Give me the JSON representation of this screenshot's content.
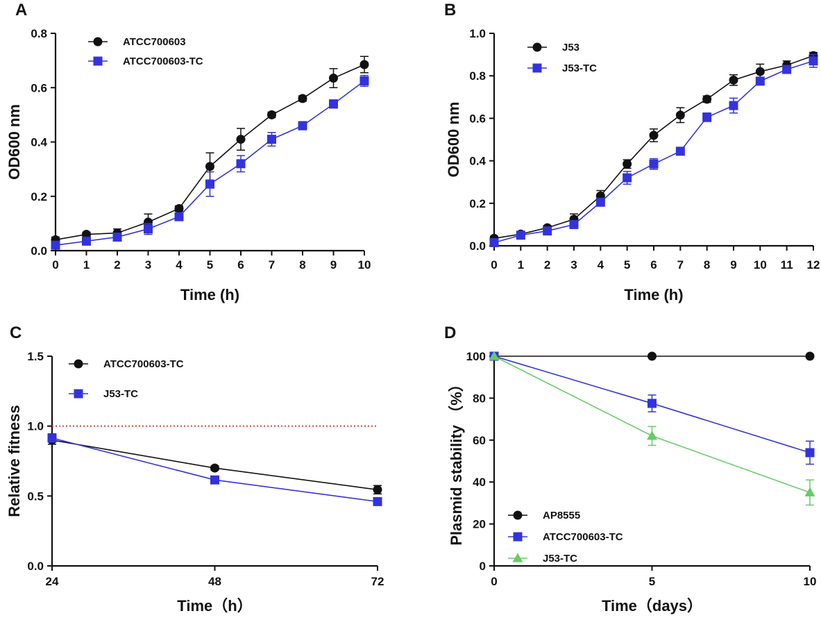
{
  "chart_data": [
    {
      "panel": "A",
      "type": "line",
      "xlabel": "Time (h)",
      "ylabel": "OD600 nm",
      "xlim": [
        0,
        10
      ],
      "ylim": [
        0,
        0.8
      ],
      "xticks": [
        "0",
        "1",
        "2",
        "3",
        "4",
        "5",
        "6",
        "7",
        "8",
        "9",
        "10"
      ],
      "yticks": [
        "0.0",
        "0.2",
        "0.4",
        "0.6",
        "0.8"
      ],
      "legend_position": "top-left",
      "series": [
        {
          "name": "ATCC700603",
          "color": "#111111",
          "marker": "circle",
          "x": [
            0,
            1,
            2,
            3,
            4,
            5,
            6,
            7,
            8,
            9,
            10
          ],
          "values": [
            0.04,
            0.06,
            0.065,
            0.105,
            0.155,
            0.31,
            0.41,
            0.5,
            0.56,
            0.635,
            0.685
          ],
          "errors": [
            0.01,
            0.008,
            0.015,
            0.03,
            0.01,
            0.05,
            0.04,
            0.01,
            0.01,
            0.035,
            0.03
          ]
        },
        {
          "name": "ATCC700603-TC",
          "color": "#3333dd",
          "marker": "square",
          "x": [
            0,
            1,
            2,
            3,
            4,
            5,
            6,
            7,
            8,
            9,
            10
          ],
          "values": [
            0.02,
            0.035,
            0.05,
            0.08,
            0.125,
            0.245,
            0.32,
            0.41,
            0.46,
            0.54,
            0.625
          ],
          "errors": [
            0.005,
            0.005,
            0.01,
            0.02,
            0.01,
            0.045,
            0.03,
            0.025,
            0.015,
            0.015,
            0.02
          ]
        }
      ]
    },
    {
      "panel": "B",
      "type": "line",
      "xlabel": "Time (h)",
      "ylabel": "OD600 nm",
      "xlim": [
        0,
        12
      ],
      "ylim": [
        0,
        1.0
      ],
      "xticks": [
        "0",
        "1",
        "2",
        "3",
        "4",
        "5",
        "6",
        "7",
        "8",
        "9",
        "10",
        "11",
        "12"
      ],
      "yticks": [
        "0.0",
        "0.2",
        "0.4",
        "0.6",
        "0.8",
        "1.0"
      ],
      "legend_position": "top-left",
      "series": [
        {
          "name": "J53",
          "color": "#111111",
          "marker": "circle",
          "x": [
            0,
            1,
            2,
            3,
            4,
            5,
            6,
            7,
            8,
            9,
            10,
            11,
            12
          ],
          "values": [
            0.035,
            0.055,
            0.085,
            0.125,
            0.235,
            0.385,
            0.52,
            0.615,
            0.69,
            0.78,
            0.82,
            0.85,
            0.895
          ],
          "errors": [
            0.01,
            0.01,
            0.01,
            0.025,
            0.025,
            0.02,
            0.03,
            0.035,
            0.015,
            0.025,
            0.035,
            0.02,
            0.015
          ]
        },
        {
          "name": "J53-TC",
          "color": "#3333dd",
          "marker": "square",
          "x": [
            0,
            1,
            2,
            3,
            4,
            5,
            6,
            7,
            8,
            9,
            10,
            11,
            12
          ],
          "values": [
            0.015,
            0.05,
            0.07,
            0.1,
            0.205,
            0.32,
            0.385,
            0.445,
            0.605,
            0.66,
            0.775,
            0.83,
            0.87
          ],
          "errors": [
            0.005,
            0.005,
            0.01,
            0.01,
            0.01,
            0.03,
            0.025,
            0.015,
            0.02,
            0.035,
            0.015,
            0.015,
            0.03
          ]
        }
      ]
    },
    {
      "panel": "C",
      "type": "line",
      "xlabel": "Time（h）",
      "ylabel": "Relative fitness",
      "xlim": [
        24,
        72
      ],
      "ylim": [
        0,
        1.5
      ],
      "xticks": [
        "24",
        "48",
        "72"
      ],
      "yticks": [
        "0.0",
        "0.5",
        "1.0",
        "1.5"
      ],
      "legend_position": "top-left",
      "reference_line": {
        "y": 1.0,
        "color": "#e04040",
        "style": "dotted"
      },
      "series": [
        {
          "name": "ATCC700603-TC",
          "color": "#111111",
          "marker": "circle",
          "x": [
            24,
            48,
            72
          ],
          "values": [
            0.9,
            0.7,
            0.545
          ],
          "errors": [
            0.03,
            0.015,
            0.03
          ]
        },
        {
          "name": "J53-TC",
          "color": "#3333dd",
          "marker": "square",
          "x": [
            24,
            48,
            72
          ],
          "values": [
            0.915,
            0.615,
            0.46
          ],
          "errors": [
            0.03,
            0.01,
            0.015
          ]
        }
      ]
    },
    {
      "panel": "D",
      "type": "line",
      "xlabel": "Time（days）",
      "ylabel": "Plasmid stability （%）",
      "xlim": [
        0,
        10
      ],
      "ylim": [
        0,
        100
      ],
      "xticks": [
        "0",
        "5",
        "10"
      ],
      "yticks": [
        "0",
        "20",
        "40",
        "60",
        "80",
        "100"
      ],
      "legend_position": "bottom-left",
      "series": [
        {
          "name": "AP8555",
          "color": "#111111",
          "marker": "circle",
          "x": [
            0,
            5,
            10
          ],
          "values": [
            100,
            100,
            100
          ],
          "errors": [
            0,
            0,
            0
          ]
        },
        {
          "name": "ATCC700603-TC",
          "color": "#3333dd",
          "marker": "square",
          "x": [
            0,
            5,
            10
          ],
          "values": [
            100,
            77.5,
            54
          ],
          "errors": [
            0,
            4,
            5.5
          ]
        },
        {
          "name": "J53-TC",
          "color": "#66cc66",
          "marker": "triangle",
          "x": [
            0,
            5,
            10
          ],
          "values": [
            100,
            62,
            35
          ],
          "errors": [
            0,
            4.5,
            6
          ]
        }
      ]
    }
  ]
}
